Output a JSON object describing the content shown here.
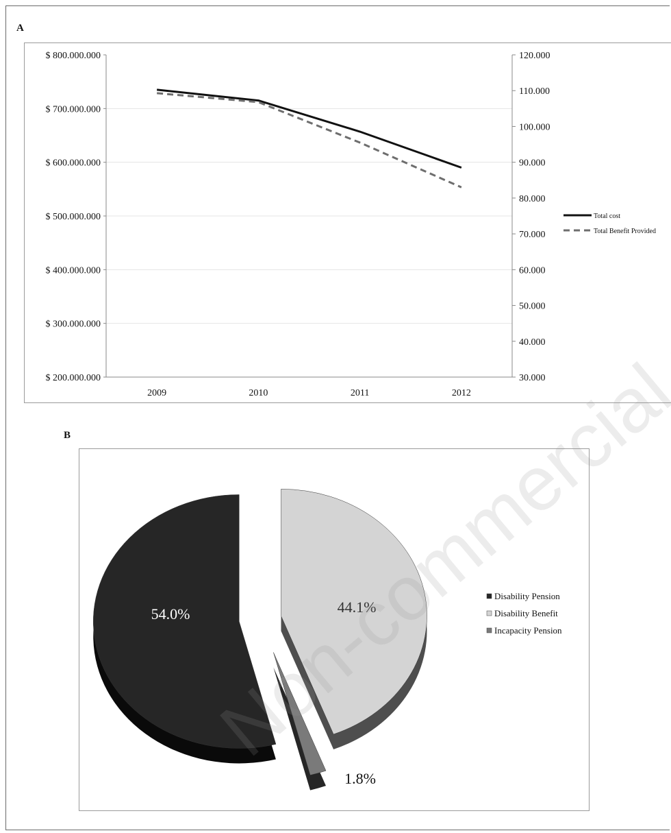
{
  "panels": {
    "a_label": "A",
    "b_label": "B"
  },
  "watermark": "Non-commercial use only",
  "colors": {
    "total_cost": "#111111",
    "total_benefit": "#6e6e6e",
    "disability_pension": "#262626",
    "disability_benefit": "#d4d4d4",
    "incapacity_pension": "#7a7a7a"
  },
  "chart_data": [
    {
      "type": "line",
      "categories": [
        "2009",
        "2010",
        "2011",
        "2012"
      ],
      "series": [
        {
          "name": "Total cost",
          "axis": "left",
          "style": "solid",
          "values": [
            735000000,
            715000000,
            657000000,
            590000000
          ]
        },
        {
          "name": "Total Benefit Provided",
          "axis": "right",
          "style": "dashed",
          "values": [
            109300,
            106800,
            95500,
            83000
          ]
        }
      ],
      "ylim_left": [
        200000000,
        800000000
      ],
      "yticks_left": [
        "$ 800.000.000",
        "$ 700.000.000",
        "$ 600.000.000",
        "$ 500.000.000",
        "$ 400.000.000",
        "$ 300.000.000",
        "$ 200.000.000"
      ],
      "ylim_right": [
        30000,
        120000
      ],
      "yticks_right": [
        "120.000",
        "110.000",
        "100.000",
        "90.000",
        "80.000",
        "70.000",
        "60.000",
        "50.000",
        "40.000",
        "30.000"
      ],
      "grid": true,
      "legend": "right"
    },
    {
      "type": "pie",
      "style": "3d-exploded",
      "slices": [
        {
          "label": "Disability Pension",
          "value": 54.0,
          "text": "54.0%"
        },
        {
          "label": "Disability Benefit",
          "value": 44.1,
          "text": "44.1%"
        },
        {
          "label": "Incapacity Pension",
          "value": 1.8,
          "text": "1.8%"
        }
      ],
      "legend": "right"
    }
  ]
}
